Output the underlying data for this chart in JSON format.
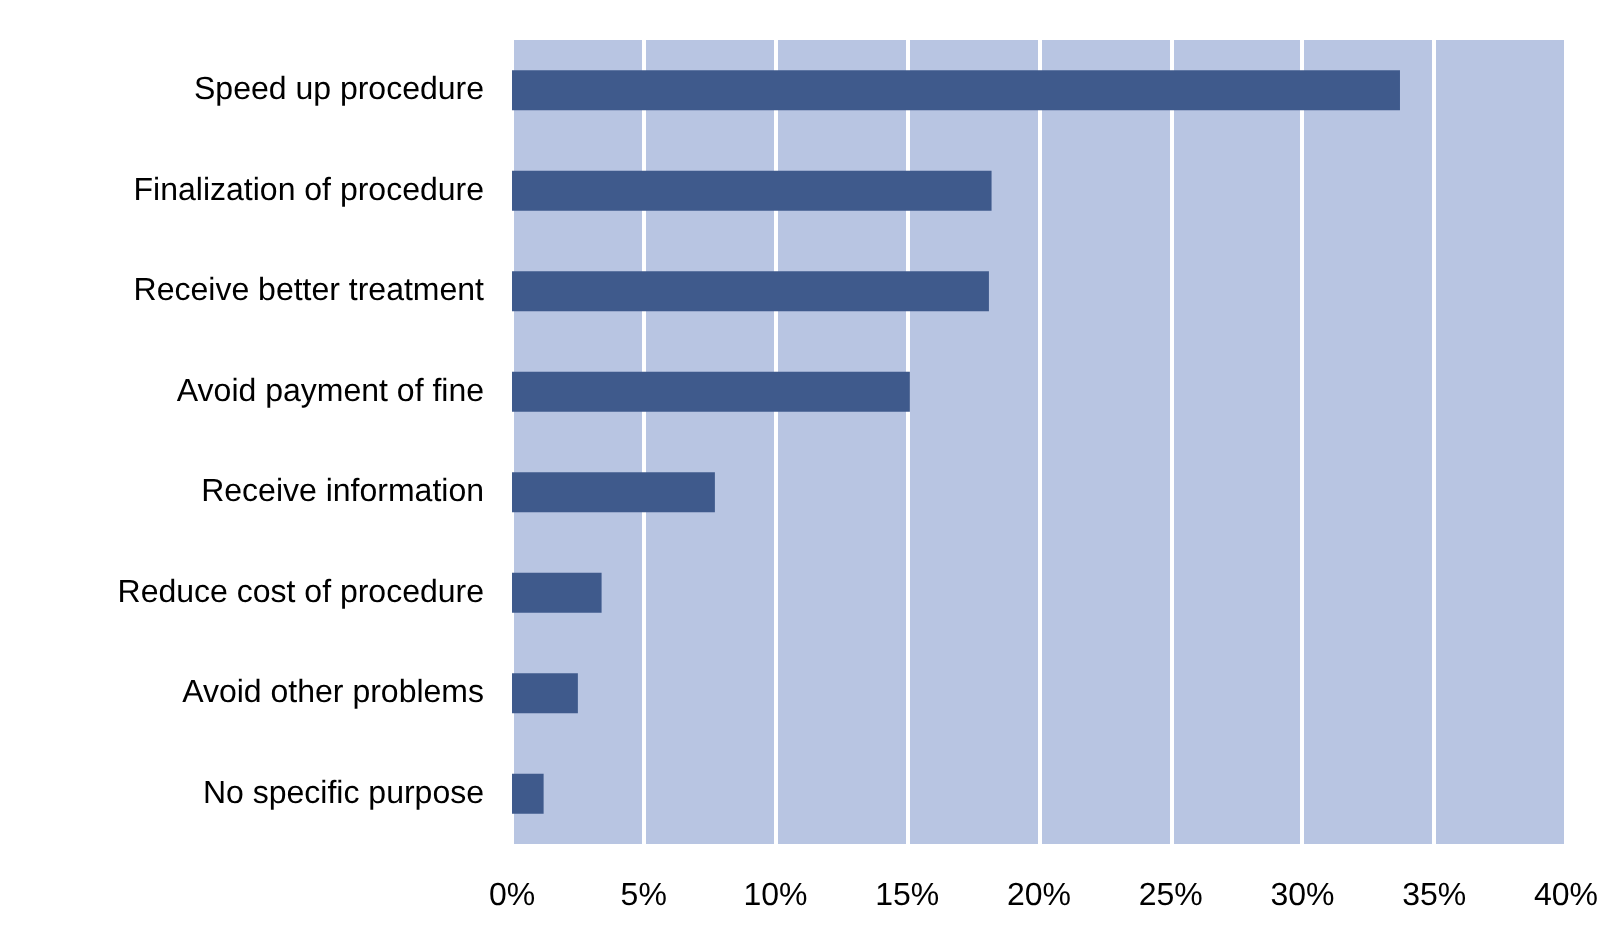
{
  "chart_data": {
    "type": "bar",
    "orientation": "horizontal",
    "categories": [
      "Speed up procedure",
      "Finalization of procedure",
      "Receive better treatment",
      "Avoid payment of fine",
      "Receive information",
      "Reduce cost of procedure",
      "Avoid other problems",
      "No specific purpose"
    ],
    "values": [
      33.7,
      18.2,
      18.1,
      15.1,
      7.7,
      3.4,
      2.5,
      1.2
    ],
    "color": "#3f5a8c",
    "xlim": [
      0,
      40
    ],
    "xticks": [
      {
        "value": 0,
        "label": "0%"
      },
      {
        "value": 5,
        "label": "5%"
      },
      {
        "value": 10,
        "label": "10%"
      },
      {
        "value": 15,
        "label": "15%"
      },
      {
        "value": 20,
        "label": "20%"
      },
      {
        "value": 25,
        "label": "25%"
      },
      {
        "value": 30,
        "label": "30%"
      },
      {
        "value": 35,
        "label": "35%"
      },
      {
        "value": 40,
        "label": "40%"
      }
    ],
    "grid": "x"
  }
}
